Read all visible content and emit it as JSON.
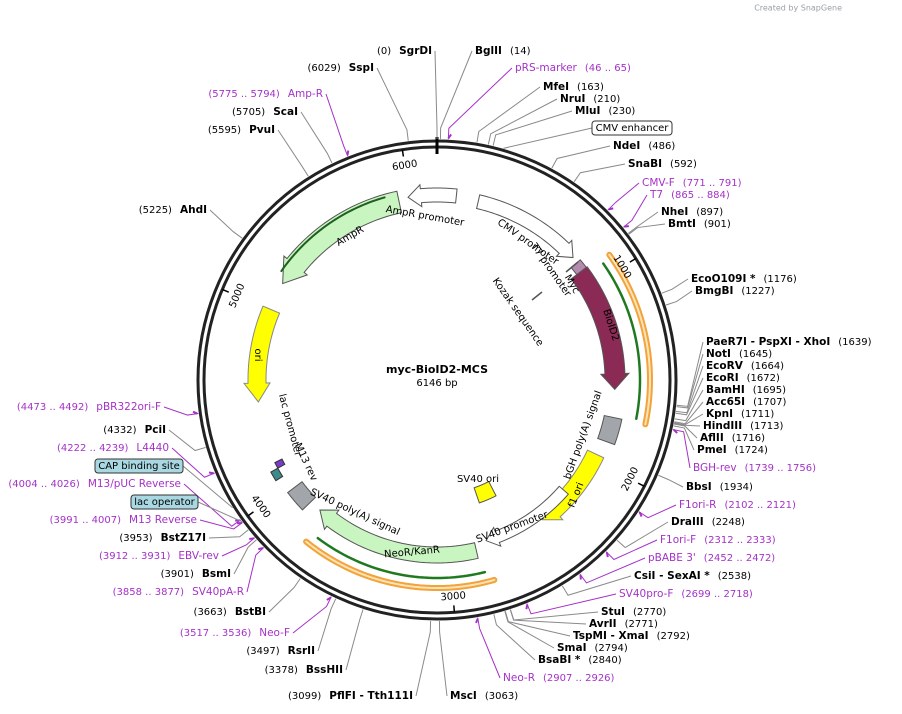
{
  "header": {
    "watermark": "Created by SnapGene"
  },
  "map": {
    "title": "myc-BioID2-MCS",
    "length": "6146 bp",
    "ticks": [
      "1000",
      "2000",
      "3000",
      "4000",
      "5000",
      "6000"
    ]
  },
  "features": [
    "AmpR promoter",
    "AmpR",
    "ori",
    "CMV promoter",
    "T7 promoter",
    "Myc",
    "Kozak sequence",
    "BioID2",
    "bGH poly(A) signal",
    "f1 ori",
    "SV40 promoter",
    "SV40 ori",
    "SV40 poly(A) signal",
    "NeoR/KanR",
    "lac promoter",
    "M13 rev"
  ],
  "boxes": [
    "CMV enhancer",
    "CAP binding site",
    "lac operator"
  ],
  "sites": [
    {
      "name": "SgrDI",
      "pos": "(0)"
    },
    {
      "name": "BglII",
      "pos": "(14)"
    },
    {
      "name": "MfeI",
      "pos": "(163)"
    },
    {
      "name": "NruI",
      "pos": "(210)"
    },
    {
      "name": "MluI",
      "pos": "(230)"
    },
    {
      "name": "NdeI",
      "pos": "(486)"
    },
    {
      "name": "SnaBI",
      "pos": "(592)"
    },
    {
      "name": "NheI",
      "pos": "(897)"
    },
    {
      "name": "BmtI",
      "pos": "(901)"
    },
    {
      "name": "EcoO109I *",
      "pos": "(1176)"
    },
    {
      "name": "BmgBI",
      "pos": "(1227)"
    },
    {
      "name": "PaeR7I - PspXI - XhoI",
      "pos": "(1639)"
    },
    {
      "name": "NotI",
      "pos": "(1645)"
    },
    {
      "name": "EcoRV",
      "pos": "(1664)"
    },
    {
      "name": "EcoRI",
      "pos": "(1672)"
    },
    {
      "name": "BamHI",
      "pos": "(1695)"
    },
    {
      "name": "Acc65I",
      "pos": "(1707)"
    },
    {
      "name": "KpnI",
      "pos": "(1711)"
    },
    {
      "name": "HindIII",
      "pos": "(1713)"
    },
    {
      "name": "AflII",
      "pos": "(1716)"
    },
    {
      "name": "PmeI",
      "pos": "(1724)"
    },
    {
      "name": "BbsI",
      "pos": "(1934)"
    },
    {
      "name": "DraIII",
      "pos": "(2248)"
    },
    {
      "name": "CsiI - SexAI *",
      "pos": "(2538)"
    },
    {
      "name": "StuI",
      "pos": "(2770)"
    },
    {
      "name": "AvrII",
      "pos": "(2771)"
    },
    {
      "name": "TspMI - XmaI",
      "pos": "(2792)"
    },
    {
      "name": "SmaI",
      "pos": "(2794)"
    },
    {
      "name": "BsaBI *",
      "pos": "(2840)"
    },
    {
      "name": "MscI",
      "pos": "(3063)"
    },
    {
      "name": "PflFI - Tth111I",
      "pos": "(3099)"
    },
    {
      "name": "BssHII",
      "pos": "(3378)"
    },
    {
      "name": "RsrII",
      "pos": "(3497)"
    },
    {
      "name": "BstBI",
      "pos": "(3663)"
    },
    {
      "name": "BsmI",
      "pos": "(3901)"
    },
    {
      "name": "BstZ17I",
      "pos": "(3953)"
    },
    {
      "name": "PciI",
      "pos": "(4332)"
    },
    {
      "name": "AhdI",
      "pos": "(5225)"
    },
    {
      "name": "PvuI",
      "pos": "(5595)"
    },
    {
      "name": "ScaI",
      "pos": "(5705)"
    },
    {
      "name": "SspI",
      "pos": "(6029)"
    }
  ],
  "primers": [
    {
      "name": "pRS-marker",
      "range": "(46 .. 65)"
    },
    {
      "name": "CMV-F",
      "range": "(771 .. 791)"
    },
    {
      "name": "T7",
      "range": "(865 .. 884)"
    },
    {
      "name": "BGH-rev",
      "range": "(1739 .. 1756)"
    },
    {
      "name": "F1ori-R",
      "range": "(2102 .. 2121)"
    },
    {
      "name": "F1ori-F",
      "range": "(2312 .. 2333)"
    },
    {
      "name": "pBABE 3'",
      "range": "(2452 .. 2472)"
    },
    {
      "name": "SV40pro-F",
      "range": "(2699 .. 2718)"
    },
    {
      "name": "Neo-R",
      "range": "(2907 .. 2926)"
    },
    {
      "name": "Neo-F",
      "range": "(3517 .. 3536)"
    },
    {
      "name": "SV40pA-R",
      "range": "(3858 .. 3877)"
    },
    {
      "name": "EBV-rev",
      "range": "(3912 .. 3931)"
    },
    {
      "name": "M13 Reverse",
      "range": "(3991 .. 4007)"
    },
    {
      "name": "M13/pUC Reverse",
      "range": "(4004 .. 4026)"
    },
    {
      "name": "L4440",
      "range": "(4222 .. 4239)"
    },
    {
      "name": "pBR322ori-F",
      "range": "(4473 .. 4492)"
    },
    {
      "name": "Amp-R",
      "range": "(5775 .. 5794)"
    }
  ]
}
